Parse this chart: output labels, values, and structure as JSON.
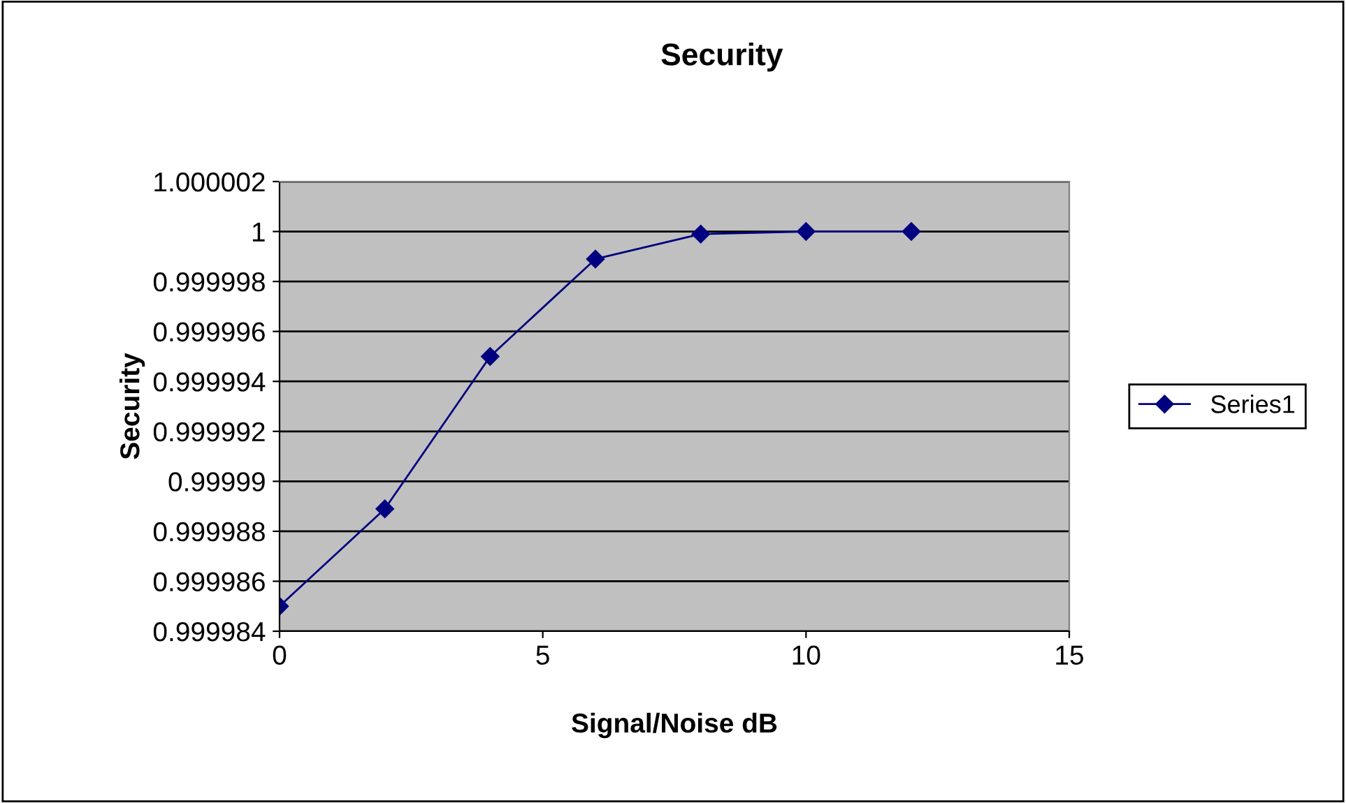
{
  "chart_data": {
    "type": "line",
    "title": "Security",
    "xlabel": "Signal/Noise dB",
    "ylabel": "Security",
    "x": [
      0,
      2,
      4,
      6,
      8,
      10,
      12
    ],
    "series": [
      {
        "name": "Series1",
        "color": "#000080",
        "values": [
          0.999985,
          0.9999889,
          0.999995,
          0.9999989,
          0.9999999,
          1,
          1
        ]
      }
    ],
    "xlim": [
      0,
      15
    ],
    "xticks": [
      0,
      5,
      10,
      15
    ],
    "ylim": [
      0.999984,
      1.000002
    ],
    "yticks": [
      0.999984,
      0.999986,
      0.999988,
      0.99999,
      0.999992,
      0.999994,
      0.999996,
      0.999998,
      1,
      1.000002
    ],
    "grid": "y",
    "legend": "right",
    "marker": "diamond",
    "line_style": "solid"
  }
}
